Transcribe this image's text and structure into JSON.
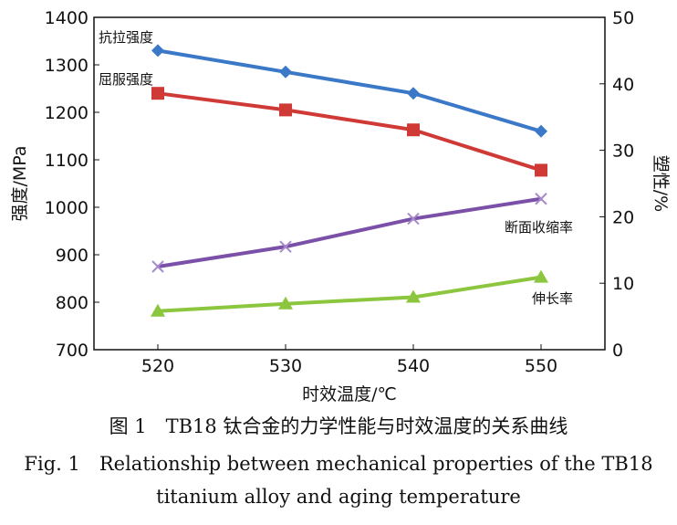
{
  "chart_data": {
    "type": "line",
    "x": [
      520,
      530,
      540,
      550
    ],
    "xlim": [
      515,
      555
    ],
    "xticks": [
      520,
      530,
      540,
      550
    ],
    "xlabel": "时效温度/℃",
    "ylabel": "强度/MPa",
    "y2label": "塑性/%",
    "ylim": [
      700,
      1400
    ],
    "yticks": [
      700,
      800,
      900,
      1000,
      1100,
      1200,
      1300,
      1400
    ],
    "y2lim": [
      0,
      50
    ],
    "y2ticks": [
      0,
      10,
      20,
      30,
      40,
      50
    ],
    "series": [
      {
        "name": "抗拉强度",
        "color": "#3b78c8",
        "marker": "diamond",
        "values": [
          1330,
          1285,
          1240,
          1160
        ]
      },
      {
        "name": "屈服强度",
        "color": "#d03a36",
        "marker": "square",
        "values": [
          1240,
          1205,
          1163,
          1078
        ]
      },
      {
        "name": "断面收缩率",
        "color": "#7b50a8",
        "marker": "x",
        "axis": "y2",
        "values": [
          12.5,
          15.5,
          19.7,
          22.7
        ]
      },
      {
        "name": "伸长率",
        "color": "#8cc63f",
        "marker": "triangle",
        "axis": "y2",
        "values": [
          5.8,
          6.9,
          7.9,
          10.9
        ]
      }
    ]
  },
  "caption": [
    "图 1　TB18 钛合金的力学性能与时效温度的关系曲线",
    "Fig. 1　Relationship between mechanical properties of the TB18",
    "titanium alloy and aging temperature"
  ]
}
